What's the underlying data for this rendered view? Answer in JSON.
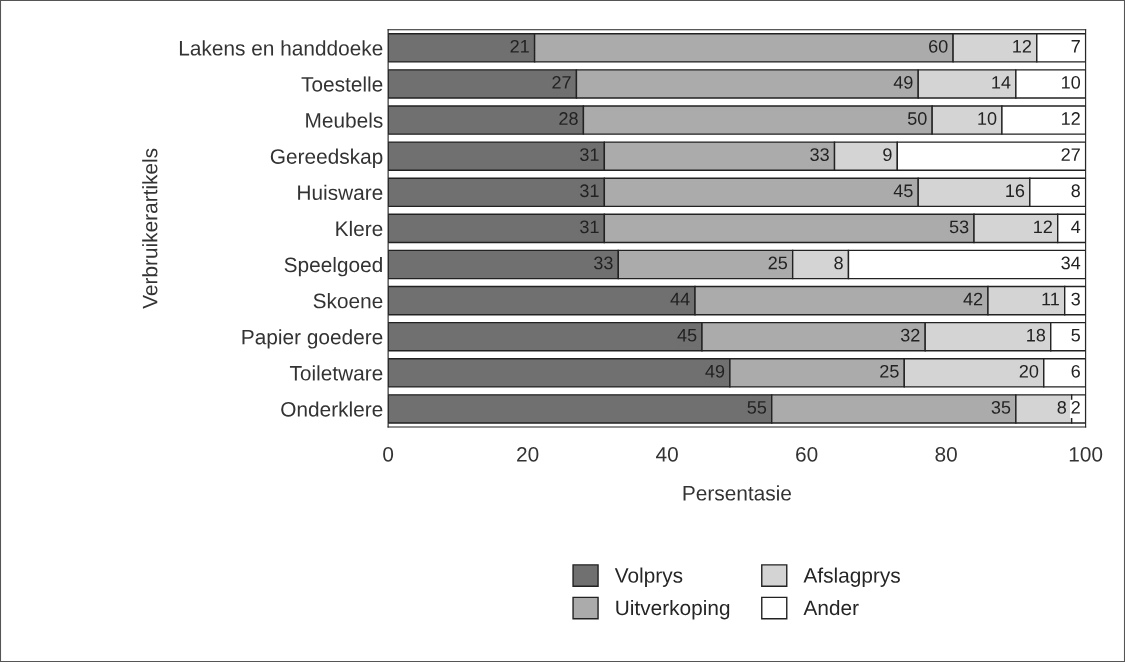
{
  "chart_data": {
    "type": "bar",
    "orientation": "horizontal",
    "stacked": true,
    "xlabel": "Persentasie",
    "ylabel": "Verbruikerartikels",
    "categories": [
      "Lakens en handdoeke",
      "Toestelle",
      "Meubels",
      "Gereedskap",
      "Huisware",
      "Klere",
      "Speelgoed",
      "Skoene",
      "Papier goedere",
      "Toiletware",
      "Onderklere"
    ],
    "series": [
      {
        "name": "Volprys",
        "color": "#707070",
        "values": [
          21,
          27,
          28,
          31,
          31,
          31,
          33,
          44,
          45,
          49,
          55
        ]
      },
      {
        "name": "Uitverkoping",
        "color": "#ababab",
        "values": [
          60,
          49,
          50,
          33,
          45,
          53,
          25,
          42,
          32,
          25,
          35
        ]
      },
      {
        "name": "Afslagprys",
        "color": "#d4d4d4",
        "values": [
          12,
          14,
          10,
          9,
          16,
          12,
          8,
          11,
          18,
          20,
          8
        ]
      },
      {
        "name": "Ander",
        "color": "#ffffff",
        "values": [
          7,
          10,
          12,
          27,
          8,
          4,
          34,
          3,
          5,
          6,
          2
        ]
      }
    ],
    "xlim": [
      0,
      100
    ],
    "xticks": [
      0,
      20,
      40,
      60,
      80,
      100
    ],
    "grid": false,
    "legend": "bottom",
    "data_labels": true
  }
}
